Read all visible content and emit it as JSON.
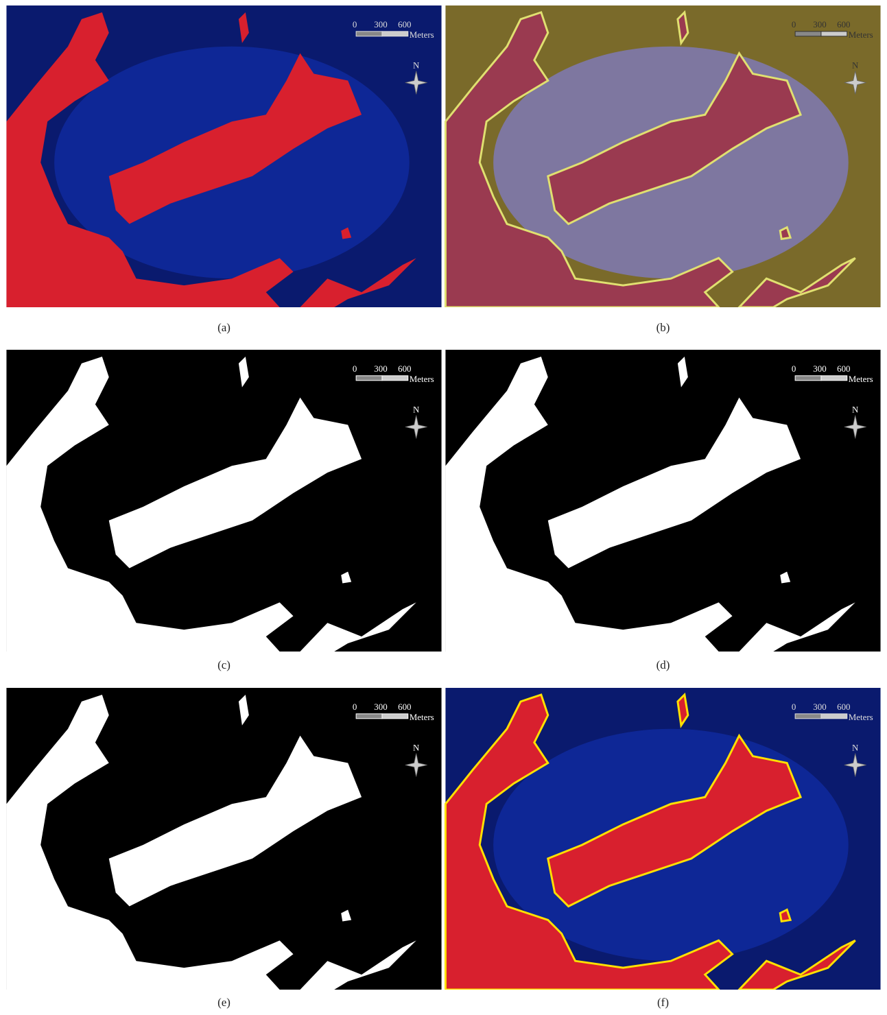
{
  "panels": [
    {
      "label": "(a)",
      "scale_bar": {
        "ticks": [
          0,
          300,
          600
        ],
        "unit": "Meters"
      },
      "north": "N"
    },
    {
      "label": "(b)",
      "scale_bar": {
        "ticks": [
          0,
          300,
          600
        ],
        "unit": "Meters"
      },
      "north": "N"
    },
    {
      "label": "(c)",
      "scale_bar": {
        "ticks": [
          0,
          300,
          600
        ],
        "unit": "Meters"
      },
      "north": "N"
    },
    {
      "label": "(d)",
      "scale_bar": {
        "ticks": [
          0,
          300,
          600
        ],
        "unit": "Meters"
      },
      "north": "N"
    },
    {
      "label": "(e)",
      "scale_bar": {
        "ticks": [
          0,
          300,
          600
        ],
        "unit": "Meters"
      },
      "north": "N"
    },
    {
      "label": "(f)",
      "scale_bar": {
        "ticks": [
          0,
          300,
          600
        ],
        "unit": "Meters"
      },
      "north": "N"
    }
  ]
}
